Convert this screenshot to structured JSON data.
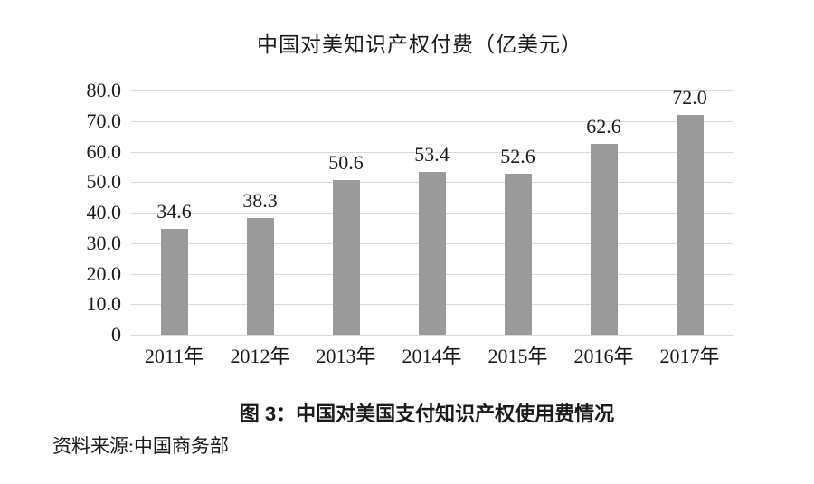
{
  "chart_data": {
    "type": "bar",
    "title": "中国对美知识产权付费（亿美元）",
    "categories": [
      "2011年",
      "2012年",
      "2013年",
      "2014年",
      "2015年",
      "2016年",
      "2017年"
    ],
    "values": [
      34.6,
      38.3,
      50.6,
      53.4,
      52.6,
      62.6,
      72.0
    ],
    "value_labels": [
      "34.6",
      "38.3",
      "50.6",
      "53.4",
      "52.6",
      "62.6",
      "72.0"
    ],
    "xlabel": "",
    "ylabel": "",
    "ylim": [
      0,
      80
    ],
    "ytick_step": 10,
    "ytick_labels": [
      "80.0",
      "70.0",
      "60.0",
      "50.0",
      "40.0",
      "30.0",
      "20.0",
      "10.0",
      "0"
    ],
    "grid": true,
    "legend_position": "none",
    "bar_color": "#9a9a9a",
    "gridline_color": "#d9d9d9",
    "text_color": "#1a1a1a"
  },
  "figure": {
    "caption": "图 3：中国对美国支付知识产权使用费情况",
    "source": "资料来源:中国商务部"
  }
}
